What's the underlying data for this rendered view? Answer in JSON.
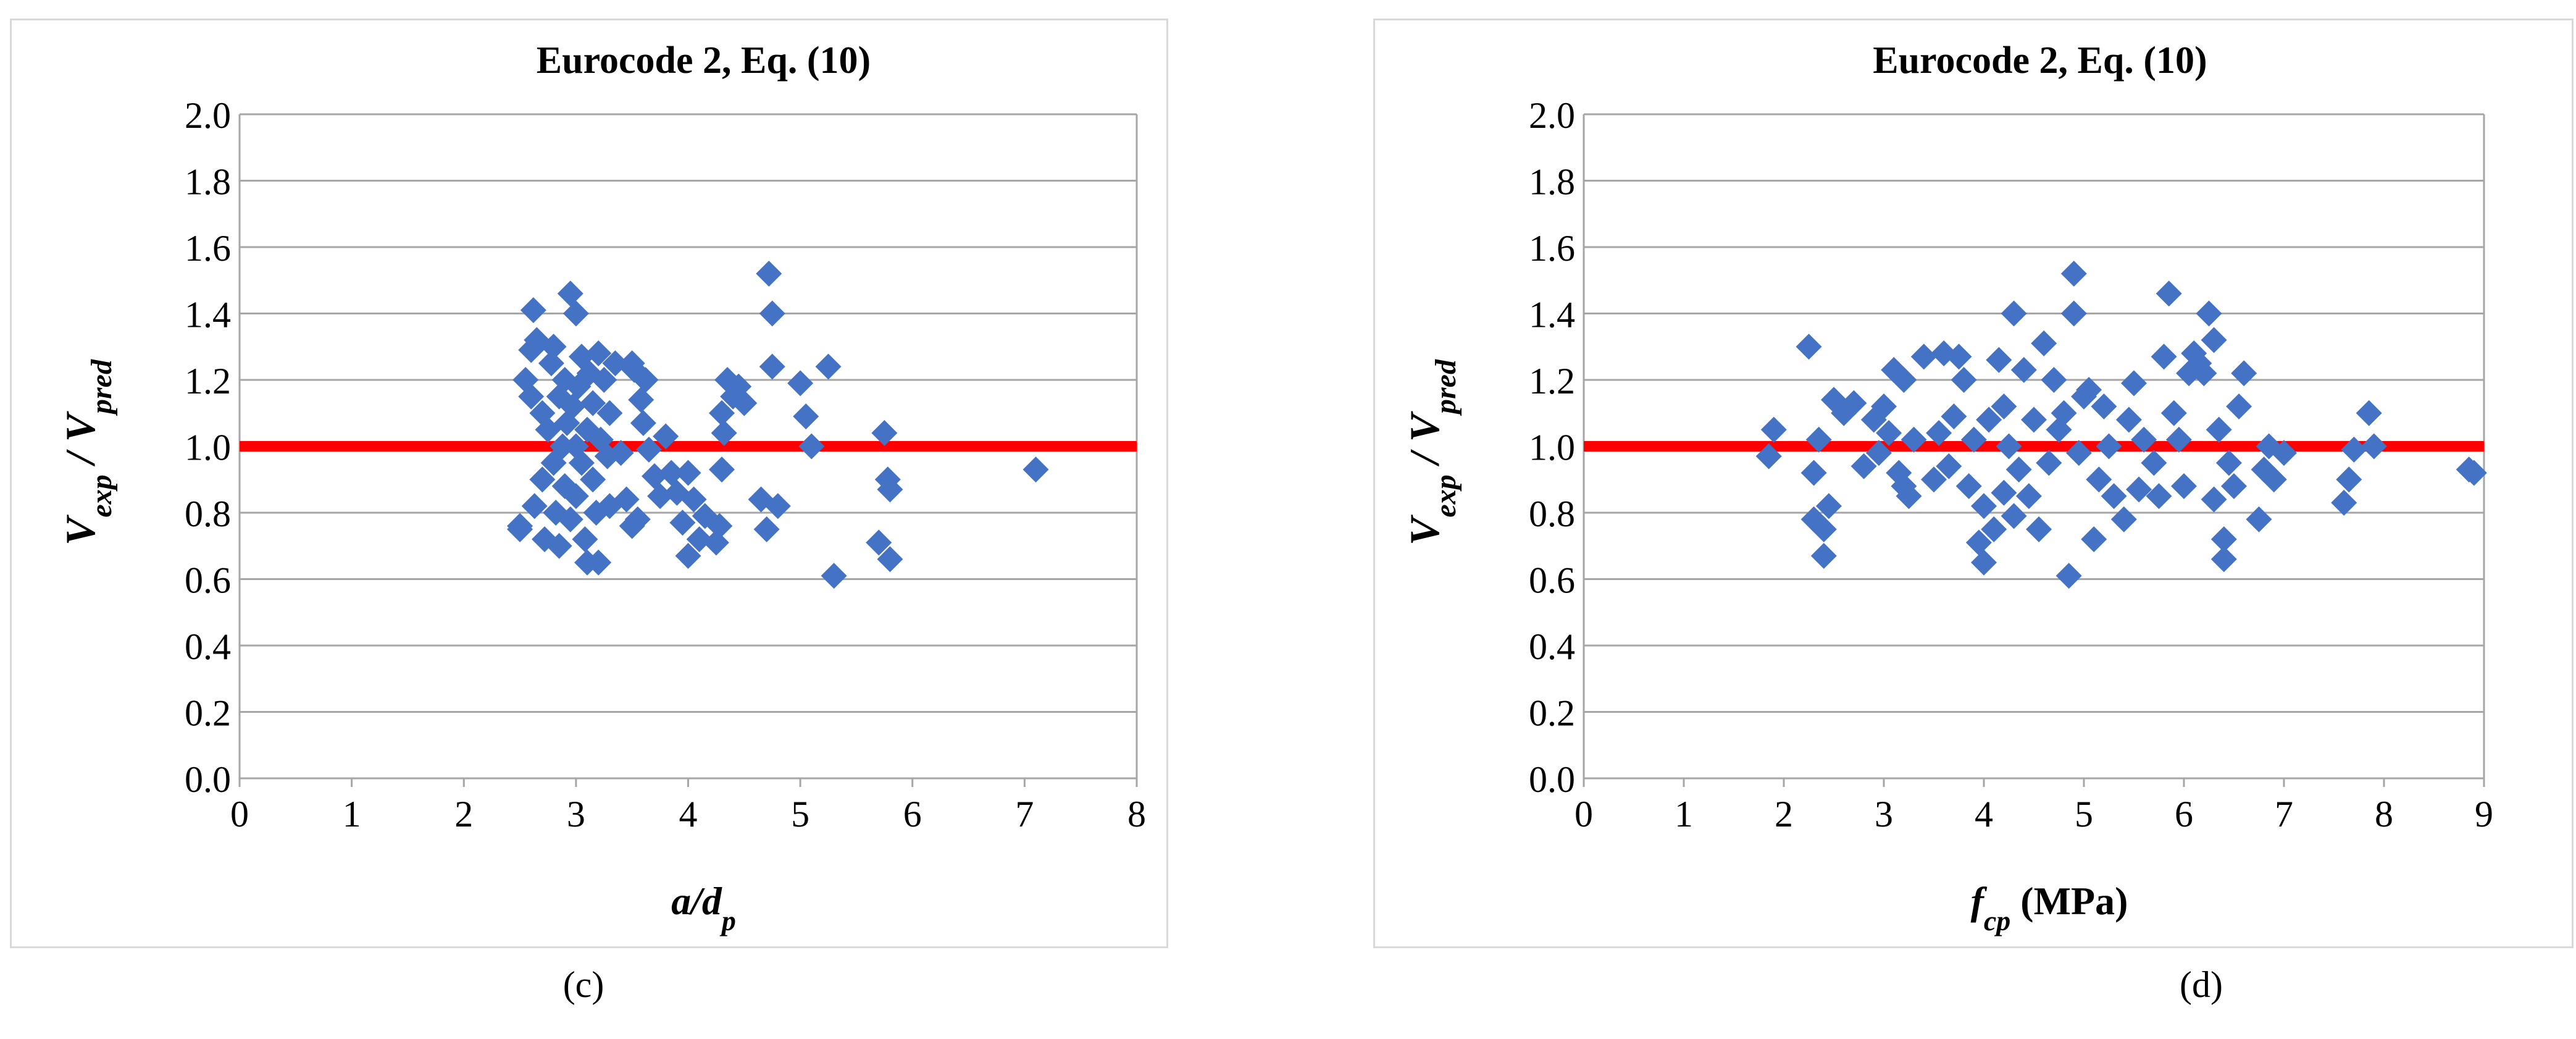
{
  "panels": [
    {
      "caption": "(c)",
      "chart_data": {
        "type": "scatter",
        "title": "Eurocode 2, Eq. (10)",
        "ylabel": [
          "V",
          "exp",
          " / V",
          "pred"
        ],
        "xlabel": [
          "a",
          "/d",
          "p",
          ""
        ],
        "xlim": [
          0,
          8
        ],
        "ylim": [
          0,
          2
        ],
        "xticks": [
          "0",
          "1",
          "2",
          "3",
          "4",
          "5",
          "6",
          "7",
          "8"
        ],
        "yticks": [
          "0.0",
          "0.2",
          "0.4",
          "0.6",
          "0.8",
          "1.0",
          "1.2",
          "1.4",
          "1.6",
          "1.8",
          "2.0"
        ],
        "grid": true,
        "marker_color": "#4472c4",
        "reference_line": {
          "y": 1.0,
          "color": "#ff0000"
        },
        "points": [
          [
            2.5,
            0.76
          ],
          [
            2.5,
            0.75
          ],
          [
            2.55,
            1.2
          ],
          [
            2.6,
            1.29
          ],
          [
            2.62,
            1.41
          ],
          [
            2.6,
            1.15
          ],
          [
            2.63,
            0.82
          ],
          [
            2.65,
            1.32
          ],
          [
            2.7,
            1.1
          ],
          [
            2.7,
            0.9
          ],
          [
            2.72,
            0.72
          ],
          [
            2.75,
            1.05
          ],
          [
            2.78,
            1.25
          ],
          [
            2.8,
            0.95
          ],
          [
            2.8,
            1.3
          ],
          [
            2.82,
            0.8
          ],
          [
            2.85,
            1.15
          ],
          [
            2.85,
            0.7
          ],
          [
            2.88,
            1.0
          ],
          [
            2.9,
            1.2
          ],
          [
            2.9,
            0.88
          ],
          [
            2.92,
            1.07
          ],
          [
            2.95,
            1.46
          ],
          [
            2.95,
            0.78
          ],
          [
            2.97,
            1.12
          ],
          [
            3.0,
            1.4
          ],
          [
            3.0,
            1.0
          ],
          [
            3.0,
            0.85
          ],
          [
            3.02,
            1.18
          ],
          [
            3.05,
            0.95
          ],
          [
            3.05,
            1.27
          ],
          [
            3.08,
            0.72
          ],
          [
            3.1,
            1.05
          ],
          [
            3.1,
            0.65
          ],
          [
            3.12,
            1.22
          ],
          [
            3.15,
            0.9
          ],
          [
            3.15,
            1.13
          ],
          [
            3.18,
            0.8
          ],
          [
            3.2,
            0.65
          ],
          [
            3.2,
            1.28
          ],
          [
            3.22,
            1.02
          ],
          [
            3.25,
            1.2
          ],
          [
            3.28,
            0.97
          ],
          [
            3.3,
            1.1
          ],
          [
            3.3,
            0.82
          ],
          [
            3.35,
            1.25
          ],
          [
            3.4,
            0.98
          ],
          [
            3.45,
            0.84
          ],
          [
            3.5,
            1.25
          ],
          [
            3.5,
            0.76
          ],
          [
            3.52,
            1.23
          ],
          [
            3.55,
            0.78
          ],
          [
            3.58,
            1.14
          ],
          [
            3.6,
            1.07
          ],
          [
            3.62,
            1.2
          ],
          [
            3.65,
            0.99
          ],
          [
            3.7,
            0.91
          ],
          [
            3.75,
            0.85
          ],
          [
            3.8,
            1.03
          ],
          [
            3.85,
            0.92
          ],
          [
            3.9,
            0.86
          ],
          [
            3.95,
            0.77
          ],
          [
            4.0,
            0.67
          ],
          [
            4.0,
            0.92
          ],
          [
            4.05,
            0.84
          ],
          [
            4.1,
            0.72
          ],
          [
            4.15,
            0.79
          ],
          [
            4.25,
            0.71
          ],
          [
            4.28,
            0.76
          ],
          [
            4.3,
            0.93
          ],
          [
            4.3,
            1.1
          ],
          [
            4.32,
            1.04
          ],
          [
            4.35,
            1.2
          ],
          [
            4.4,
            1.15
          ],
          [
            4.45,
            1.18
          ],
          [
            4.5,
            1.13
          ],
          [
            4.65,
            0.84
          ],
          [
            4.7,
            0.75
          ],
          [
            4.72,
            1.52
          ],
          [
            4.75,
            1.4
          ],
          [
            4.75,
            1.24
          ],
          [
            4.8,
            0.82
          ],
          [
            5.0,
            1.19
          ],
          [
            5.05,
            1.09
          ],
          [
            5.1,
            1.0
          ],
          [
            5.25,
            1.24
          ],
          [
            5.3,
            0.61
          ],
          [
            5.7,
            0.71
          ],
          [
            5.75,
            1.04
          ],
          [
            5.78,
            0.9
          ],
          [
            5.8,
            0.87
          ],
          [
            5.8,
            0.66
          ],
          [
            7.1,
            0.93
          ]
        ]
      }
    },
    {
      "caption": "(d)",
      "chart_data": {
        "type": "scatter",
        "title": "Eurocode 2, Eq. (10)",
        "ylabel": [
          "V",
          "exp",
          " / V",
          "pred"
        ],
        "xlabel": [
          "f",
          "cp",
          " (MPa)",
          ""
        ],
        "xlim": [
          0,
          9
        ],
        "ylim": [
          0,
          2
        ],
        "xticks": [
          "0",
          "1",
          "2",
          "3",
          "4",
          "5",
          "6",
          "7",
          "8",
          "9"
        ],
        "yticks": [
          "0.0",
          "0.2",
          "0.4",
          "0.6",
          "0.8",
          "1.0",
          "1.2",
          "1.4",
          "1.6",
          "1.8",
          "2.0"
        ],
        "grid": true,
        "marker_color": "#4472c4",
        "reference_line": {
          "y": 1.0,
          "color": "#ff0000"
        },
        "points": [
          [
            1.85,
            0.97
          ],
          [
            1.9,
            1.05
          ],
          [
            2.25,
            1.3
          ],
          [
            2.3,
            0.92
          ],
          [
            2.3,
            0.78
          ],
          [
            2.35,
            1.02
          ],
          [
            2.4,
            0.67
          ],
          [
            2.4,
            0.75
          ],
          [
            2.45,
            0.82
          ],
          [
            2.5,
            1.14
          ],
          [
            2.6,
            1.1
          ],
          [
            2.7,
            1.13
          ],
          [
            2.8,
            0.94
          ],
          [
            2.9,
            1.08
          ],
          [
            2.95,
            0.98
          ],
          [
            3.0,
            1.12
          ],
          [
            3.05,
            1.04
          ],
          [
            3.1,
            1.23
          ],
          [
            3.15,
            0.92
          ],
          [
            3.2,
            1.2
          ],
          [
            3.2,
            0.88
          ],
          [
            3.25,
            0.85
          ],
          [
            3.3,
            1.02
          ],
          [
            3.4,
            1.27
          ],
          [
            3.5,
            0.9
          ],
          [
            3.55,
            1.04
          ],
          [
            3.6,
            1.28
          ],
          [
            3.65,
            0.94
          ],
          [
            3.7,
            1.09
          ],
          [
            3.75,
            1.27
          ],
          [
            3.8,
            1.2
          ],
          [
            3.85,
            0.88
          ],
          [
            3.9,
            1.02
          ],
          [
            3.95,
            0.71
          ],
          [
            4.0,
            0.65
          ],
          [
            4.0,
            0.82
          ],
          [
            4.05,
            1.08
          ],
          [
            4.1,
            0.75
          ],
          [
            4.15,
            1.26
          ],
          [
            4.2,
            0.86
          ],
          [
            4.2,
            1.12
          ],
          [
            4.25,
            1.0
          ],
          [
            4.3,
            1.4
          ],
          [
            4.3,
            0.79
          ],
          [
            4.35,
            0.93
          ],
          [
            4.4,
            1.23
          ],
          [
            4.45,
            0.85
          ],
          [
            4.5,
            1.08
          ],
          [
            4.55,
            0.75
          ],
          [
            4.6,
            1.31
          ],
          [
            4.65,
            0.95
          ],
          [
            4.7,
            1.2
          ],
          [
            4.75,
            1.05
          ],
          [
            4.8,
            1.1
          ],
          [
            4.85,
            0.61
          ],
          [
            4.9,
            1.52
          ],
          [
            4.9,
            1.4
          ],
          [
            4.95,
            0.98
          ],
          [
            5.0,
            1.15
          ],
          [
            5.05,
            1.17
          ],
          [
            5.1,
            0.72
          ],
          [
            5.15,
            0.9
          ],
          [
            5.2,
            1.12
          ],
          [
            5.25,
            1.0
          ],
          [
            5.3,
            0.85
          ],
          [
            5.4,
            0.78
          ],
          [
            5.45,
            1.08
          ],
          [
            5.5,
            1.19
          ],
          [
            5.55,
            0.87
          ],
          [
            5.6,
            1.02
          ],
          [
            5.7,
            0.95
          ],
          [
            5.75,
            0.85
          ],
          [
            5.8,
            1.27
          ],
          [
            5.85,
            1.46
          ],
          [
            5.9,
            1.1
          ],
          [
            5.95,
            1.02
          ],
          [
            6.0,
            0.88
          ],
          [
            6.05,
            1.22
          ],
          [
            6.1,
            1.28
          ],
          [
            6.15,
            1.25
          ],
          [
            6.2,
            1.22
          ],
          [
            6.25,
            1.4
          ],
          [
            6.3,
            1.32
          ],
          [
            6.3,
            0.84
          ],
          [
            6.35,
            1.05
          ],
          [
            6.4,
            0.72
          ],
          [
            6.4,
            0.66
          ],
          [
            6.45,
            0.95
          ],
          [
            6.5,
            0.88
          ],
          [
            6.55,
            1.12
          ],
          [
            6.6,
            1.22
          ],
          [
            6.75,
            0.78
          ],
          [
            6.8,
            0.93
          ],
          [
            6.85,
            1.0
          ],
          [
            6.9,
            0.9
          ],
          [
            7.0,
            0.98
          ],
          [
            7.6,
            0.83
          ],
          [
            7.65,
            0.9
          ],
          [
            7.7,
            0.99
          ],
          [
            7.85,
            1.1
          ],
          [
            7.9,
            1.0
          ],
          [
            8.85,
            0.93
          ],
          [
            8.9,
            0.92
          ]
        ]
      }
    }
  ]
}
